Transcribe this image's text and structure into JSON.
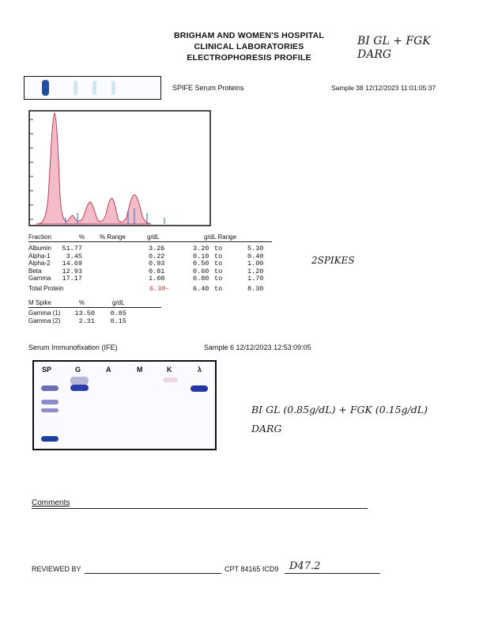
{
  "header": {
    "line1": "BRIGHAM AND WOMEN'S HOSPITAL",
    "line2": "CLINICAL LABORATORIES",
    "line3": "ELECTROPHORESIS PROFILE"
  },
  "handwriting_top": {
    "line1": "BI GL + FGK",
    "line2": "DARG"
  },
  "spife": {
    "title": "SPIFE Serum Proteins",
    "sample": "Sample 38  12/12/2023  11:01:05:37"
  },
  "fractions": {
    "headers": {
      "fraction": "Fraction",
      "pct": "%",
      "pct_range": "% Range",
      "gdl": "g/dL",
      "gdl_range": "g/dL Range"
    },
    "rows": [
      {
        "name": "Albumin",
        "pct": "51.77",
        "gdl": "3.26",
        "lo": "3.20",
        "to": "to",
        "hi": "5.30"
      },
      {
        "name": "Alpha-1",
        "pct": "3.45",
        "gdl": "0.22",
        "lo": "0.10",
        "to": "to",
        "hi": "0.40"
      },
      {
        "name": "Alpha-2",
        "pct": "14.69",
        "gdl": "0.93",
        "lo": "0.50",
        "to": "to",
        "hi": "1.00"
      },
      {
        "name": "Beta",
        "pct": "12.93",
        "gdl": "0.81",
        "lo": "0.60",
        "to": "to",
        "hi": "1.20"
      },
      {
        "name": "Gamma",
        "pct": "17.17",
        "gdl": "1.08",
        "lo": "0.80",
        "to": "to",
        "hi": "1.70"
      }
    ],
    "total": {
      "name": "Total Protein",
      "gdl": "6.30-",
      "lo": "6.40",
      "to": "to",
      "hi": "8.30"
    },
    "handnote": "2SPIKES"
  },
  "mspike": {
    "headers": {
      "name": "M Spike",
      "pct": "%",
      "gdl": "g/dL"
    },
    "rows": [
      {
        "name": "Gamma  (1)",
        "pct": "13.50",
        "gdl": "0.85"
      },
      {
        "name": "Gamma  (2)",
        "pct": "2.31",
        "gdl": "0.15"
      }
    ]
  },
  "ife": {
    "title": "Serum Immunofixation (IFE)",
    "sample": "Sample 6  12/12/2023  12:53:09:05",
    "lanes": [
      "SP",
      "G",
      "A",
      "M",
      "K",
      "λ"
    ],
    "handnote_line1": "BI GL (0.85g/dL) + FGK (0.15g/dL)",
    "handnote_line2": "DARG"
  },
  "comments_label": "Comments",
  "footer": {
    "reviewed": "REVIEWED BY",
    "cpt": "CPT 84165 ICD9",
    "icd_hand": "D47.2"
  },
  "colors": {
    "curve_fill": "#f4bcc8",
    "curve_line": "#c0405a",
    "band_blue": "#1f4fa0",
    "marker": "#3a78c8"
  }
}
